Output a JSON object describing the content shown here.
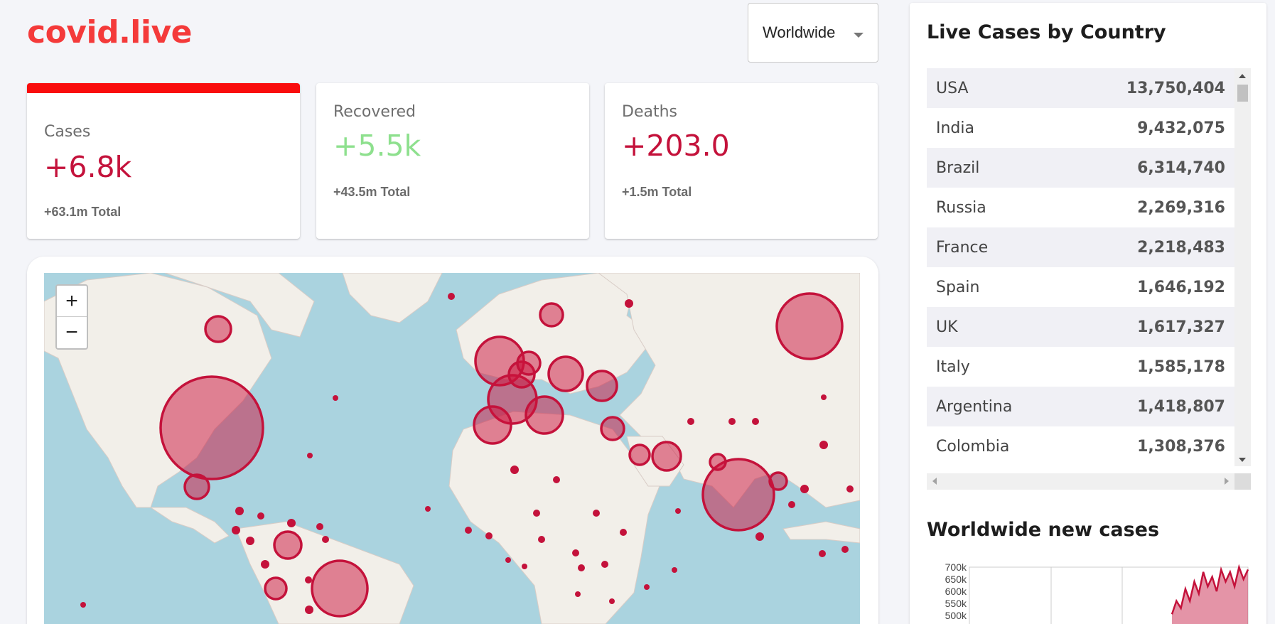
{
  "app": {
    "logo": "covid.live"
  },
  "region_selector": {
    "value": "Worldwide"
  },
  "stats": {
    "cases": {
      "label": "Cases",
      "delta": "+6.8k",
      "total": "+63.1m Total"
    },
    "recovered": {
      "label": "Recovered",
      "delta": "+5.5k",
      "total": "+43.5m Total"
    },
    "deaths": {
      "label": "Deaths",
      "delta": "+203.0",
      "total": "+1.5m Total"
    }
  },
  "map": {
    "zoom_in": "+",
    "zoom_out": "−",
    "bubble_color": "#c4123b"
  },
  "live_cases": {
    "title": "Live Cases by Country",
    "rows": [
      {
        "country": "USA",
        "cases": "13,750,404"
      },
      {
        "country": "India",
        "cases": "9,432,075"
      },
      {
        "country": "Brazil",
        "cases": "6,314,740"
      },
      {
        "country": "Russia",
        "cases": "2,269,316"
      },
      {
        "country": "France",
        "cases": "2,218,483"
      },
      {
        "country": "Spain",
        "cases": "1,646,192"
      },
      {
        "country": "UK",
        "cases": "1,617,327"
      },
      {
        "country": "Italy",
        "cases": "1,585,178"
      },
      {
        "country": "Argentina",
        "cases": "1,418,807"
      },
      {
        "country": "Colombia",
        "cases": "1,308,376"
      }
    ]
  },
  "chart_data": {
    "type": "area",
    "title": "Worldwide new cases",
    "ytick_labels": [
      "700k",
      "650k",
      "600k",
      "550k",
      "500k"
    ],
    "ylim": [
      500000,
      700000
    ],
    "series": [
      {
        "values": [
          505000,
          560000,
          530000,
          610000,
          560000,
          640000,
          590000,
          680000,
          620000,
          660000,
          600000,
          690000,
          640000,
          680000,
          620000,
          700000,
          650000,
          690000
        ]
      }
    ]
  }
}
